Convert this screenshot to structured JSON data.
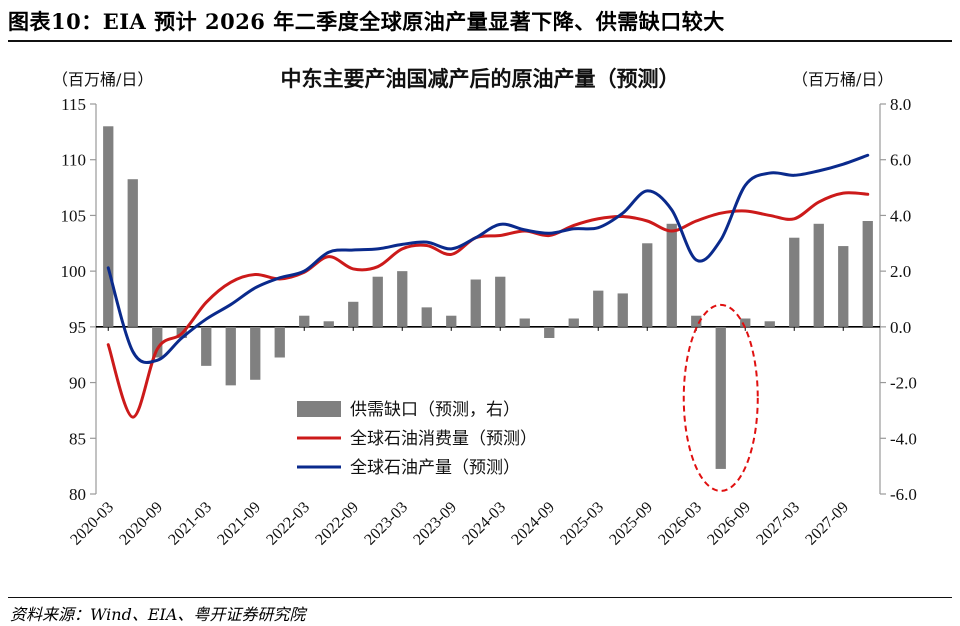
{
  "figure_title": "图表10：EIA 预计 2026 年二季度全球原油产量显著下降、供需缺口较大",
  "source": "资料来源：Wind、EIA、粤开证券研究院",
  "chart_data": {
    "type": "bar+line",
    "title": "中东主要产油国减产后的原油产量（预测）",
    "left_unit": "（百万桶/日）",
    "right_unit": "（百万桶/日）",
    "left_axis": {
      "min": 80,
      "max": 115,
      "ticks": [
        "80",
        "85",
        "90",
        "95",
        "100",
        "105",
        "110",
        "115"
      ]
    },
    "right_axis": {
      "min": -6,
      "max": 8,
      "ticks": [
        "-6.0",
        "-4.0",
        "-2.0",
        "0.0",
        "2.0",
        "4.0",
        "6.0",
        "8.0"
      ]
    },
    "x_tick_labels": [
      "2020-03",
      "2020-09",
      "2021-03",
      "2021-09",
      "2022-03",
      "2022-09",
      "2023-03",
      "2023-09",
      "2024-03",
      "2024-09",
      "2025-03",
      "2025-09",
      "2026-03",
      "2026-09",
      "2027-03",
      "2027-09"
    ],
    "bar_series": {
      "name": "供需缺口（预测，右）",
      "color": "#808080",
      "x": [
        "2020-03",
        "2020-06",
        "2020-09",
        "2020-12",
        "2021-03",
        "2021-06",
        "2021-09",
        "2021-12",
        "2022-03",
        "2022-06",
        "2022-09",
        "2022-12",
        "2023-03",
        "2023-06",
        "2023-09",
        "2023-12",
        "2024-03",
        "2024-06",
        "2024-09",
        "2024-12",
        "2025-03",
        "2025-06",
        "2025-09",
        "2025-12",
        "2026-03",
        "2026-06",
        "2026-09",
        "2026-12",
        "2027-03",
        "2027-06",
        "2027-09",
        "2027-12"
      ],
      "values": [
        7.2,
        5.3,
        -1.1,
        -0.4,
        -1.4,
        -2.1,
        -1.9,
        -1.1,
        0.4,
        0.2,
        0.9,
        1.8,
        2.0,
        0.7,
        0.4,
        1.7,
        1.8,
        0.3,
        -0.4,
        0.3,
        1.3,
        1.2,
        3.0,
        3.7,
        0.4,
        -5.1,
        0.3,
        0.2,
        3.2,
        3.7,
        2.9,
        3.8
      ]
    },
    "line_series": [
      {
        "name": "全球石油消费量（预测）",
        "color": "#cc1a1a",
        "x": [
          "2020-03",
          "2020-06",
          "2020-09",
          "2020-12",
          "2021-03",
          "2021-06",
          "2021-09",
          "2021-12",
          "2022-03",
          "2022-06",
          "2022-09",
          "2022-12",
          "2023-03",
          "2023-06",
          "2023-09",
          "2023-12",
          "2024-03",
          "2024-06",
          "2024-09",
          "2024-12",
          "2025-03",
          "2025-06",
          "2025-09",
          "2025-12",
          "2026-03",
          "2026-06",
          "2026-09",
          "2026-12",
          "2027-03",
          "2027-06",
          "2027-09",
          "2027-12"
        ],
        "values": [
          93.4,
          86.9,
          93.0,
          94.4,
          97.2,
          99.0,
          99.7,
          99.3,
          99.9,
          101.3,
          100.2,
          100.4,
          102.0,
          102.3,
          101.5,
          103.0,
          103.2,
          103.6,
          103.2,
          104.1,
          104.7,
          104.9,
          104.5,
          103.6,
          104.5,
          105.2,
          105.4,
          105.0,
          104.7,
          106.2,
          107.0,
          106.9
        ]
      },
      {
        "name": "全球石油产量（预测）",
        "color": "#0a2a8c",
        "x": [
          "2020-03",
          "2020-06",
          "2020-09",
          "2020-12",
          "2021-03",
          "2021-06",
          "2021-09",
          "2021-12",
          "2022-03",
          "2022-06",
          "2022-09",
          "2022-12",
          "2023-03",
          "2023-06",
          "2023-09",
          "2023-12",
          "2024-03",
          "2024-06",
          "2024-09",
          "2024-12",
          "2025-03",
          "2025-06",
          "2025-09",
          "2025-12",
          "2026-03",
          "2026-06",
          "2026-09",
          "2026-12",
          "2027-03",
          "2027-06",
          "2027-09",
          "2027-12"
        ],
        "values": [
          100.3,
          92.8,
          92.0,
          94.0,
          95.7,
          97.0,
          98.5,
          99.4,
          100.0,
          101.7,
          101.9,
          102.0,
          102.4,
          102.6,
          102.0,
          103.0,
          104.2,
          103.7,
          103.4,
          103.8,
          103.9,
          105.2,
          107.2,
          105.5,
          101.0,
          102.8,
          107.7,
          108.8,
          108.6,
          109.0,
          109.6,
          110.4
        ]
      }
    ],
    "annotation": "red dashed ellipse highlighting the 2026 Q2 supply-demand gap"
  }
}
